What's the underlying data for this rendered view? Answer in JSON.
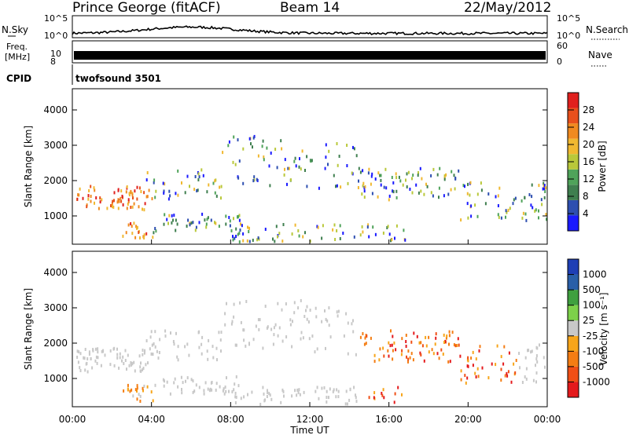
{
  "header": {
    "station": "Prince George (fitACF)",
    "beam": "Beam 14",
    "date": "22/May/2012"
  },
  "top_panels": {
    "nsky_label": "N.Sky",
    "nsearch_label": "N.Search",
    "noise_ticks": [
      "10^5",
      "10^0"
    ],
    "freq_label_1": "Freq.",
    "freq_label_2": "[MHz]",
    "freq_ticks": [
      "10",
      "8"
    ],
    "nave_label": "Nave",
    "nave_ticks": [
      "60",
      "0"
    ],
    "cpid_label": "CPID",
    "cpid_value": "twofsound 3501"
  },
  "colors": {
    "power": [
      "#1a1aff",
      "#2e4fb0",
      "#3f7f4f",
      "#4fa35a",
      "#b9c83a",
      "#f0b830",
      "#f08a20",
      "#e8501c",
      "#e0201e"
    ],
    "velocity": [
      "#e41a1c",
      "#f04f16",
      "#f47d13",
      "#f7a51a",
      "#c8c8c8",
      "#7dd14a",
      "#3fa03f",
      "#2a5fa8",
      "#1f3fb5"
    ]
  },
  "chart_data": [
    {
      "type": "heatmap",
      "name": "Power",
      "xlabel": "",
      "ylabel": "Slant Range [km]",
      "yticks": [
        1000,
        2000,
        3000,
        4000
      ],
      "ylim": [
        200,
        4600
      ],
      "xlim": [
        0,
        24
      ],
      "colorbar_label": "Power [dB]",
      "colorbar_ticks": [
        "4",
        "8",
        "12",
        "16",
        "20",
        "24",
        "28"
      ],
      "colorbar_range": [
        0,
        32
      ]
    },
    {
      "type": "heatmap",
      "name": "Velocity",
      "xlabel": "Time UT",
      "ylabel": "Slant Range [km]",
      "yticks": [
        1000,
        2000,
        3000,
        4000
      ],
      "ylim": [
        200,
        4600
      ],
      "xlim": [
        0,
        24
      ],
      "xticks": [
        "00:00",
        "04:00",
        "08:00",
        "12:00",
        "16:00",
        "20:00",
        "00:00"
      ],
      "colorbar_label": "Velocity [m s⁻¹]",
      "colorbar_ticks": [
        "-1000",
        "-500",
        "-100",
        "-25",
        "25",
        "100",
        "500",
        "1000"
      ]
    }
  ]
}
